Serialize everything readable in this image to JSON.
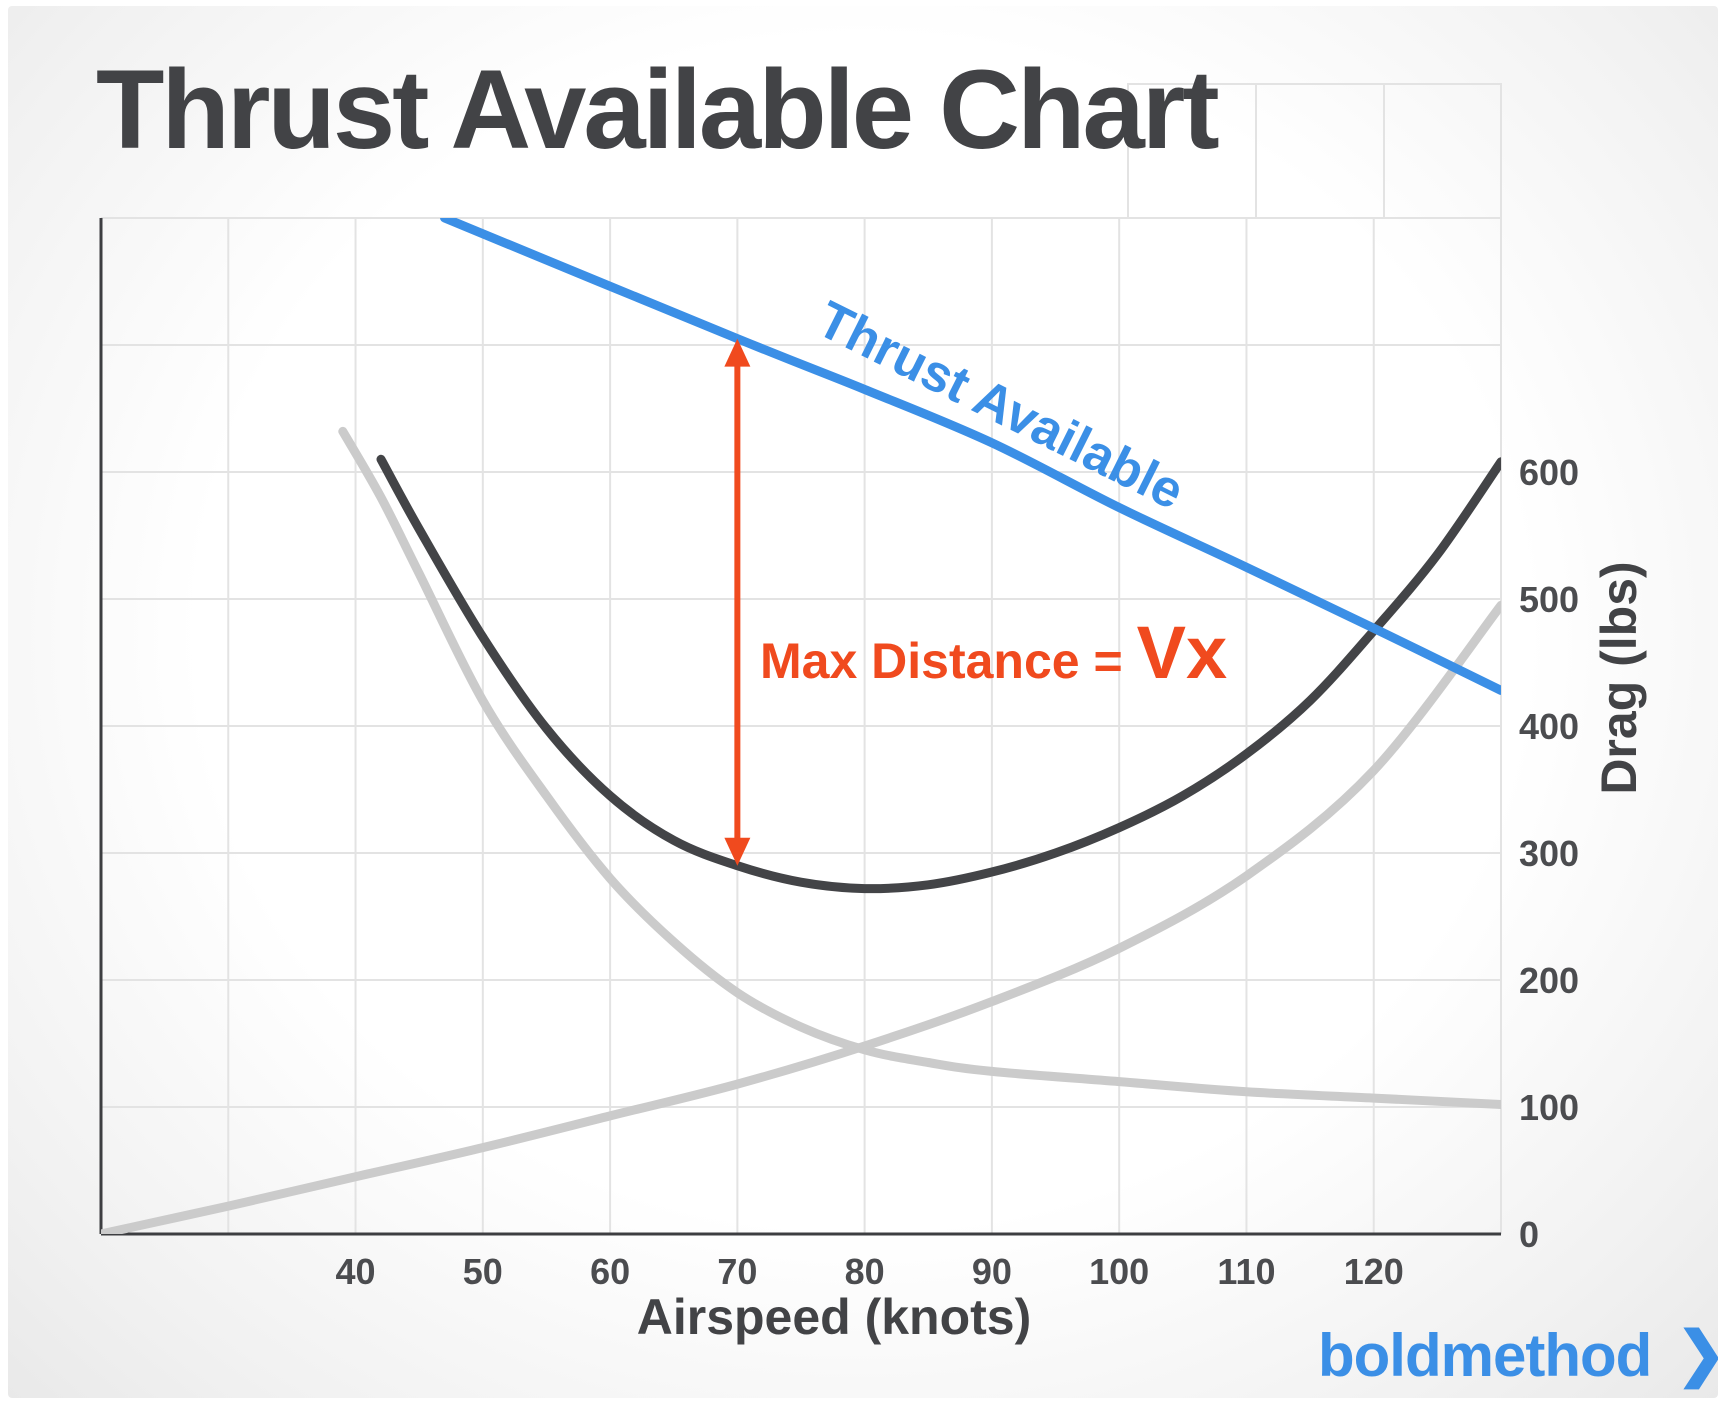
{
  "chart_data": {
    "type": "line",
    "title": "Thrust Available Chart",
    "xlabel": "Airspeed (knots)",
    "ylabel": "Drag (lbs)",
    "x_ticks": [
      40,
      50,
      60,
      70,
      80,
      90,
      100,
      110,
      120
    ],
    "y_ticks": [
      0,
      100,
      200,
      300,
      400,
      500,
      600
    ],
    "xlim": [
      20,
      130
    ],
    "ylim": [
      0,
      800
    ],
    "y_axis_side": "right",
    "grid": true,
    "series": [
      {
        "name": "Thrust Available",
        "color": "#3b8fe6",
        "points": [
          [
            47,
            800
          ],
          [
            70,
            705
          ],
          [
            80,
            665
          ],
          [
            90,
            623
          ],
          [
            100,
            572
          ],
          [
            110,
            525
          ],
          [
            120,
            477
          ],
          [
            130,
            428
          ]
        ]
      },
      {
        "name": "",
        "color": "#434447",
        "points": [
          [
            42,
            610
          ],
          [
            45,
            555
          ],
          [
            50,
            470
          ],
          [
            55,
            398
          ],
          [
            60,
            345
          ],
          [
            65,
            310
          ],
          [
            70,
            290
          ],
          [
            75,
            277
          ],
          [
            80,
            272
          ],
          [
            85,
            275
          ],
          [
            90,
            285
          ],
          [
            95,
            300
          ],
          [
            100,
            320
          ],
          [
            105,
            345
          ],
          [
            110,
            378
          ],
          [
            115,
            420
          ],
          [
            120,
            475
          ],
          [
            125,
            535
          ],
          [
            130,
            608
          ]
        ]
      },
      {
        "name": "",
        "color": "#cbcbcb",
        "points": [
          [
            39,
            632
          ],
          [
            42,
            580
          ],
          [
            45,
            520
          ],
          [
            50,
            420
          ],
          [
            55,
            345
          ],
          [
            60,
            280
          ],
          [
            65,
            230
          ],
          [
            70,
            190
          ],
          [
            75,
            163
          ],
          [
            80,
            145
          ],
          [
            85,
            135
          ],
          [
            90,
            128
          ],
          [
            100,
            120
          ],
          [
            110,
            112
          ],
          [
            120,
            107
          ],
          [
            130,
            102
          ]
        ]
      },
      {
        "name": "",
        "color": "#cbcbcb",
        "points": [
          [
            20,
            0
          ],
          [
            30,
            22
          ],
          [
            40,
            45
          ],
          [
            50,
            68
          ],
          [
            60,
            93
          ],
          [
            70,
            118
          ],
          [
            80,
            148
          ],
          [
            90,
            183
          ],
          [
            100,
            225
          ],
          [
            110,
            282
          ],
          [
            120,
            365
          ],
          [
            130,
            495
          ]
        ]
      }
    ],
    "annotation": {
      "type": "double-arrow",
      "x": 70,
      "y_from": 290,
      "y_to": 705,
      "color": "#f04a1e",
      "label": "Max Distance =",
      "label_emphasis": "Vx"
    }
  },
  "brand": {
    "name": "boldmethod",
    "chevron": "❯",
    "color": "#3b8fe6"
  }
}
